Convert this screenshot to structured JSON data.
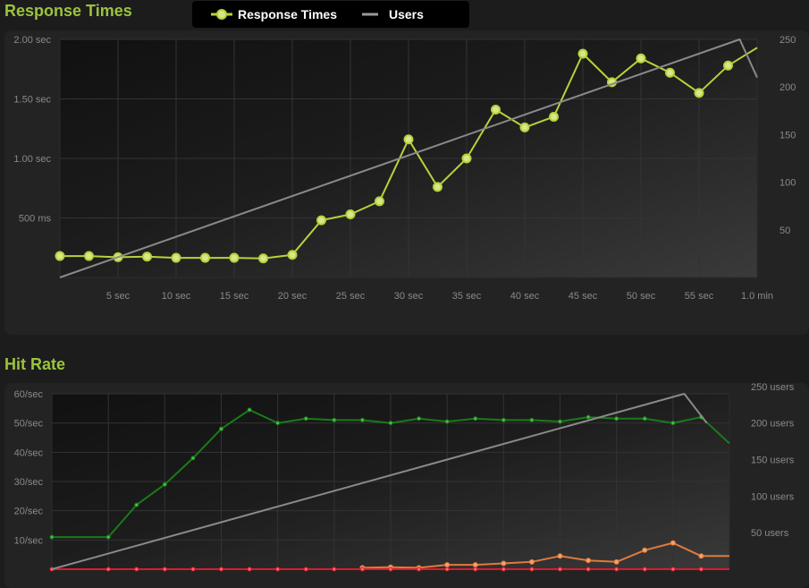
{
  "colors": {
    "response_line": "#b5d33a",
    "response_dot_fill": "#d6e78a",
    "users_line": "#8a8a8a",
    "hits_line": "#1a7a1a",
    "hits_dot": "#4fbf4f",
    "orange_line": "#e07a3a",
    "red_line": "#d81c2c",
    "heading": "#9bc43c",
    "axis_text": "#8a8a8a"
  },
  "legend": {
    "response_label": "Response Times",
    "users_label": "Users"
  },
  "chart_data": [
    {
      "type": "line",
      "title": "Response Times",
      "x_tick_labels": [
        "5 sec",
        "10 sec",
        "15 sec",
        "20 sec",
        "25 sec",
        "30 sec",
        "35 sec",
        "40 sec",
        "45 sec",
        "50 sec",
        "55 sec",
        "1.0 min"
      ],
      "x_tick_values": [
        5,
        10,
        15,
        20,
        25,
        30,
        35,
        40,
        45,
        50,
        55,
        60
      ],
      "y_left_tick_labels": [
        "500 ms",
        "1.00 sec",
        "1.50 sec",
        "2.00 sec"
      ],
      "y_left_tick_values": [
        0.5,
        1.0,
        1.5,
        2.0
      ],
      "y_right_tick_labels": [
        "50",
        "100",
        "150",
        "200",
        "250"
      ],
      "y_right_tick_values": [
        50,
        100,
        150,
        200,
        250
      ],
      "xlim": [
        0,
        60
      ],
      "ylim_left": [
        0.0,
        2.0
      ],
      "ylim_right": [
        0,
        250
      ],
      "grid": true,
      "series": [
        {
          "name": "Response Times",
          "axis": "left",
          "x": [
            0,
            2.5,
            5,
            7.5,
            10,
            12.5,
            15,
            17.5,
            20,
            22.5,
            25,
            27.5,
            30,
            32.5,
            35,
            37.5,
            40,
            42.5,
            45,
            47.5,
            50,
            52.5,
            55,
            57.5,
            60
          ],
          "y": [
            0.18,
            0.18,
            0.17,
            0.175,
            0.165,
            0.165,
            0.165,
            0.16,
            0.19,
            0.48,
            0.53,
            0.64,
            1.16,
            0.76,
            1.0,
            1.41,
            1.26,
            1.35,
            1.88,
            1.64,
            1.84,
            1.72,
            1.55,
            1.78,
            1.93
          ],
          "markers": [
            true,
            true,
            true,
            true,
            true,
            true,
            true,
            true,
            true,
            true,
            true,
            true,
            true,
            true,
            true,
            true,
            true,
            true,
            true,
            true,
            true,
            true,
            true,
            true,
            false
          ]
        },
        {
          "name": "Users",
          "axis": "right",
          "x": [
            0,
            58.5,
            60
          ],
          "y": [
            0,
            250,
            210
          ]
        }
      ]
    },
    {
      "type": "line",
      "title": "Hit Rate",
      "x_tick_values": [
        0,
        5,
        10,
        15,
        20,
        25,
        30,
        35,
        40,
        45,
        50,
        55,
        60
      ],
      "y_left_tick_labels": [
        "10/sec",
        "20/sec",
        "30/sec",
        "40/sec",
        "50/sec",
        "60/sec"
      ],
      "y_left_tick_values": [
        10,
        20,
        30,
        40,
        50,
        60
      ],
      "y_right_tick_labels": [
        "50 users",
        "100 users",
        "150 users",
        "200 users",
        "250 users"
      ],
      "y_right_tick_values": [
        50,
        100,
        150,
        200,
        250
      ],
      "xlim": [
        0,
        60
      ],
      "ylim_left": [
        0,
        60
      ],
      "ylim_right": [
        0,
        240
      ],
      "grid": true,
      "series": [
        {
          "axis": "left",
          "x": [
            0,
            5,
            7.5,
            10,
            12.5,
            15,
            17.5,
            20,
            22.5,
            25,
            27.5,
            30,
            32.5,
            35,
            37.5,
            40,
            42.5,
            45,
            47.5,
            50,
            52.5,
            55,
            57.5,
            60
          ],
          "y": [
            11,
            11,
            22,
            29,
            38,
            48,
            54.5,
            50,
            51.5,
            51,
            51,
            50,
            51.5,
            50.5,
            51.5,
            51,
            51,
            50.5,
            52,
            51.5,
            51.5,
            50,
            52,
            43
          ],
          "markers": [
            true,
            true,
            true,
            true,
            true,
            true,
            true,
            true,
            true,
            true,
            true,
            true,
            true,
            true,
            true,
            true,
            true,
            true,
            true,
            true,
            true,
            true,
            true,
            false
          ]
        },
        {
          "axis": "left",
          "x": [
            27.5,
            30,
            32.5,
            35,
            37.5,
            40,
            42.5,
            45,
            47.5,
            50,
            52.5,
            55,
            57.5,
            60
          ],
          "y": [
            0.5,
            0.7,
            0.5,
            1.5,
            1.5,
            2,
            2.5,
            4.5,
            3,
            2.5,
            6.5,
            9,
            4.5,
            4.5
          ],
          "markers": [
            true,
            true,
            true,
            true,
            true,
            true,
            true,
            true,
            true,
            true,
            true,
            true,
            true,
            false
          ]
        },
        {
          "axis": "left",
          "x": [
            0,
            5,
            7.5,
            10,
            12.5,
            15,
            17.5,
            20,
            22.5,
            25,
            27.5,
            30,
            32.5,
            35,
            37.5,
            40,
            42.5,
            45,
            47.5,
            50,
            52.5,
            55,
            57.5,
            60
          ],
          "y": [
            0,
            0,
            0,
            0,
            0,
            0,
            0,
            0,
            0,
            0,
            0,
            0,
            0,
            0,
            0,
            0,
            0,
            0,
            0,
            0,
            0,
            0,
            0,
            0
          ],
          "markers": [
            true,
            true,
            true,
            true,
            true,
            true,
            true,
            true,
            true,
            true,
            true,
            true,
            true,
            true,
            true,
            true,
            true,
            true,
            true,
            true,
            true,
            true,
            true,
            false
          ]
        },
        {
          "name": "Users",
          "axis": "right",
          "x": [
            0,
            56,
            58
          ],
          "y": [
            0,
            240,
            200
          ]
        }
      ]
    }
  ]
}
